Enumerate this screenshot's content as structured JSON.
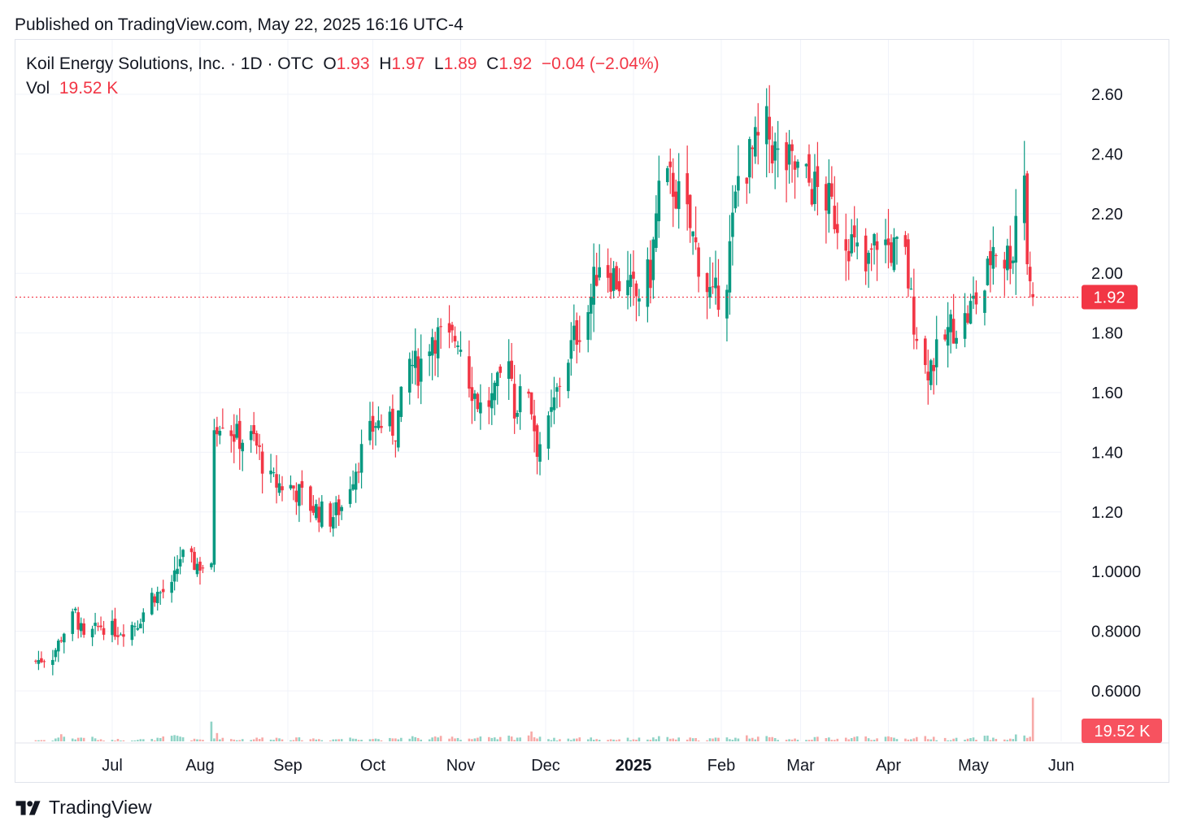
{
  "header": {
    "published": "Published on TradingView.com, May 22, 2025 16:16 UTC-4"
  },
  "legend": {
    "title": "Koil Energy Solutions, Inc. · 1D · OTC",
    "o_label": "O",
    "o_value": "1.93",
    "h_label": "H",
    "h_value": "1.97",
    "l_label": "L",
    "l_value": "1.89",
    "c_label": "C",
    "c_value": "1.92",
    "change": "−0.04 (−2.04%)",
    "vol_label": "Vol",
    "vol_value": "19.52 K"
  },
  "footer": {
    "brand": "TradingView"
  },
  "colors": {
    "up": "#089981",
    "down": "#f23645",
    "up_vol": "#8fd3c6",
    "down_vol": "#f7a9a7",
    "grid": "#f0f3fa",
    "text": "#131722"
  },
  "chart_data": {
    "type": "candlestick",
    "symbol": "Koil Energy Solutions, Inc.",
    "interval": "1D",
    "ylim": [
      0.5,
      2.7
    ],
    "y_ticks": [
      {
        "value": 2.6,
        "label": "2.60"
      },
      {
        "value": 2.4,
        "label": "2.40"
      },
      {
        "value": 2.2,
        "label": "2.20"
      },
      {
        "value": 2.0,
        "label": "2.00"
      },
      {
        "value": 1.8,
        "label": "1.80"
      },
      {
        "value": 1.6,
        "label": "1.60"
      },
      {
        "value": 1.4,
        "label": "1.40"
      },
      {
        "value": 1.2,
        "label": "1.20"
      },
      {
        "value": 1.0,
        "label": "1.0000"
      },
      {
        "value": 0.8,
        "label": "0.8000"
      },
      {
        "value": 0.6,
        "label": "0.6000"
      }
    ],
    "x_ticks": [
      {
        "date": "2024-07-01",
        "label": "Jul",
        "bold": false
      },
      {
        "date": "2024-08-01",
        "label": "Aug",
        "bold": false
      },
      {
        "date": "2024-09-01",
        "label": "Sep",
        "bold": false
      },
      {
        "date": "2024-10-01",
        "label": "Oct",
        "bold": false
      },
      {
        "date": "2024-11-01",
        "label": "Nov",
        "bold": false
      },
      {
        "date": "2024-12-01",
        "label": "Dec",
        "bold": false
      },
      {
        "date": "2025-01-01",
        "label": "2025",
        "bold": true
      },
      {
        "date": "2025-02-01",
        "label": "Feb",
        "bold": false
      },
      {
        "date": "2025-03-01",
        "label": "Mar",
        "bold": false
      },
      {
        "date": "2025-04-01",
        "label": "Apr",
        "bold": false
      },
      {
        "date": "2025-05-01",
        "label": "May",
        "bold": false
      },
      {
        "date": "2025-06-01",
        "label": "Jun",
        "bold": false
      }
    ],
    "last_price": 1.92,
    "last_price_label": "1.92",
    "last_volume_label": "19.52 K",
    "volume_max": 60000,
    "anchors": [
      [
        "2024-06-04",
        0.7,
        0.7
      ],
      [
        "2024-06-10",
        0.72,
        0.8
      ],
      [
        "2024-06-14",
        0.8,
        4.0
      ],
      [
        "2024-06-18",
        0.86,
        1.2
      ],
      [
        "2024-06-21",
        0.77,
        3.0
      ],
      [
        "2024-06-27",
        0.82,
        0.8
      ],
      [
        "2024-07-03",
        0.8,
        1.0
      ],
      [
        "2024-07-10",
        0.83,
        1.0
      ],
      [
        "2024-07-15",
        0.92,
        1.0
      ],
      [
        "2024-07-22",
        0.94,
        2.5
      ],
      [
        "2024-07-25",
        1.05,
        3.0
      ],
      [
        "2024-07-29",
        1.03,
        1.0
      ],
      [
        "2024-08-02",
        1.02,
        1.0
      ],
      [
        "2024-08-05",
        1.0,
        12.0
      ],
      [
        "2024-08-06",
        1.5,
        4.0
      ],
      [
        "2024-08-09",
        1.52,
        2.0
      ],
      [
        "2024-08-14",
        1.45,
        1.0
      ],
      [
        "2024-08-20",
        1.44,
        1.5
      ],
      [
        "2024-08-26",
        1.3,
        2.0
      ],
      [
        "2024-09-03",
        1.28,
        1.5
      ],
      [
        "2024-09-09",
        1.22,
        1.5
      ],
      [
        "2024-09-16",
        1.18,
        1.0
      ],
      [
        "2024-09-20",
        1.22,
        1.5
      ],
      [
        "2024-09-26",
        1.38,
        2.0
      ],
      [
        "2024-10-02",
        1.5,
        1.5
      ],
      [
        "2024-10-09",
        1.48,
        1.2
      ],
      [
        "2024-10-14",
        1.7,
        3.0
      ],
      [
        "2024-10-17",
        1.68,
        1.5
      ],
      [
        "2024-10-22",
        1.8,
        1.5
      ],
      [
        "2024-10-28",
        1.76,
        3.5
      ],
      [
        "2024-10-31",
        1.8,
        2.0
      ],
      [
        "2024-11-05",
        1.62,
        1.5
      ],
      [
        "2024-11-08",
        1.55,
        2.0
      ],
      [
        "2024-11-13",
        1.58,
        1.5
      ],
      [
        "2024-11-18",
        1.75,
        2.5
      ],
      [
        "2024-11-20",
        1.55,
        2.0
      ],
      [
        "2024-11-25",
        1.62,
        4.0
      ],
      [
        "2024-11-28",
        1.42,
        3.5
      ],
      [
        "2024-12-02",
        1.48,
        1.5
      ],
      [
        "2024-12-06",
        1.64,
        1.2
      ],
      [
        "2024-12-11",
        1.78,
        1.5
      ],
      [
        "2024-12-16",
        1.88,
        2.0
      ],
      [
        "2024-12-20",
        2.05,
        1.2
      ],
      [
        "2024-12-26",
        1.98,
        1.2
      ],
      [
        "2025-01-02",
        1.92,
        1.5
      ],
      [
        "2025-01-07",
        2.0,
        1.5
      ],
      [
        "2025-01-10",
        2.28,
        2.0
      ],
      [
        "2025-01-15",
        2.3,
        1.5
      ],
      [
        "2025-01-21",
        2.15,
        1.5
      ],
      [
        "2025-01-24",
        2.05,
        1.2
      ],
      [
        "2025-01-29",
        1.9,
        1.5
      ],
      [
        "2025-02-03",
        2.0,
        1.8
      ],
      [
        "2025-02-07",
        2.32,
        2.0
      ],
      [
        "2025-02-12",
        2.4,
        3.0
      ],
      [
        "2025-02-17",
        2.48,
        2.0
      ],
      [
        "2025-02-21",
        2.38,
        1.5
      ],
      [
        "2025-02-27",
        2.35,
        1.5
      ],
      [
        "2025-03-04",
        2.3,
        1.5
      ],
      [
        "2025-03-10",
        2.25,
        2.0
      ],
      [
        "2025-03-14",
        2.18,
        1.5
      ],
      [
        "2025-03-19",
        2.1,
        2.0
      ],
      [
        "2025-03-24",
        2.0,
        2.5
      ],
      [
        "2025-03-28",
        2.12,
        1.5
      ],
      [
        "2025-04-02",
        2.08,
        2.0
      ],
      [
        "2025-04-07",
        2.05,
        1.5
      ],
      [
        "2025-04-09",
        1.9,
        2.0
      ],
      [
        "2025-04-14",
        1.68,
        2.5
      ],
      [
        "2025-04-18",
        1.72,
        1.5
      ],
      [
        "2025-04-23",
        1.82,
        1.5
      ],
      [
        "2025-04-28",
        1.84,
        1.2
      ],
      [
        "2025-05-01",
        1.9,
        1.5
      ],
      [
        "2025-05-05",
        1.95,
        2.5
      ],
      [
        "2025-05-08",
        2.1,
        1.5
      ],
      [
        "2025-05-12",
        2.05,
        1.2
      ],
      [
        "2025-05-15",
        2.08,
        1.5
      ],
      [
        "2025-05-16",
        2.2,
        3.0
      ],
      [
        "2025-05-19",
        2.35,
        4.0
      ],
      [
        "2025-05-20",
        2.05,
        3.5
      ],
      [
        "2025-05-21",
        1.95,
        2.0
      ],
      [
        "2025-05-22",
        1.92,
        1.0
      ]
    ]
  }
}
